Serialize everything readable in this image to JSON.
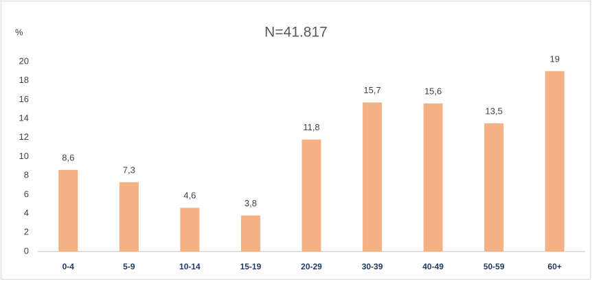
{
  "chart_data": {
    "type": "bar",
    "title": "N=41.817",
    "y_label": "%",
    "categories": [
      "0-4",
      "5-9",
      "10-14",
      "15-19",
      "20-29",
      "30-39",
      "40-49",
      "50-59",
      "60+"
    ],
    "values": [
      8.6,
      7.3,
      4.6,
      3.8,
      11.8,
      15.7,
      15.6,
      13.5,
      19
    ],
    "value_labels": [
      "8,6",
      "7,3",
      "4,6",
      "3,8",
      "11,8",
      "15,7",
      "15,6",
      "13,5",
      "19"
    ],
    "color": "#f4b183",
    "ylim": [
      0,
      20
    ],
    "yticks": [
      0,
      2,
      4,
      6,
      8,
      10,
      12,
      14,
      16,
      18,
      20
    ],
    "grid": false
  }
}
